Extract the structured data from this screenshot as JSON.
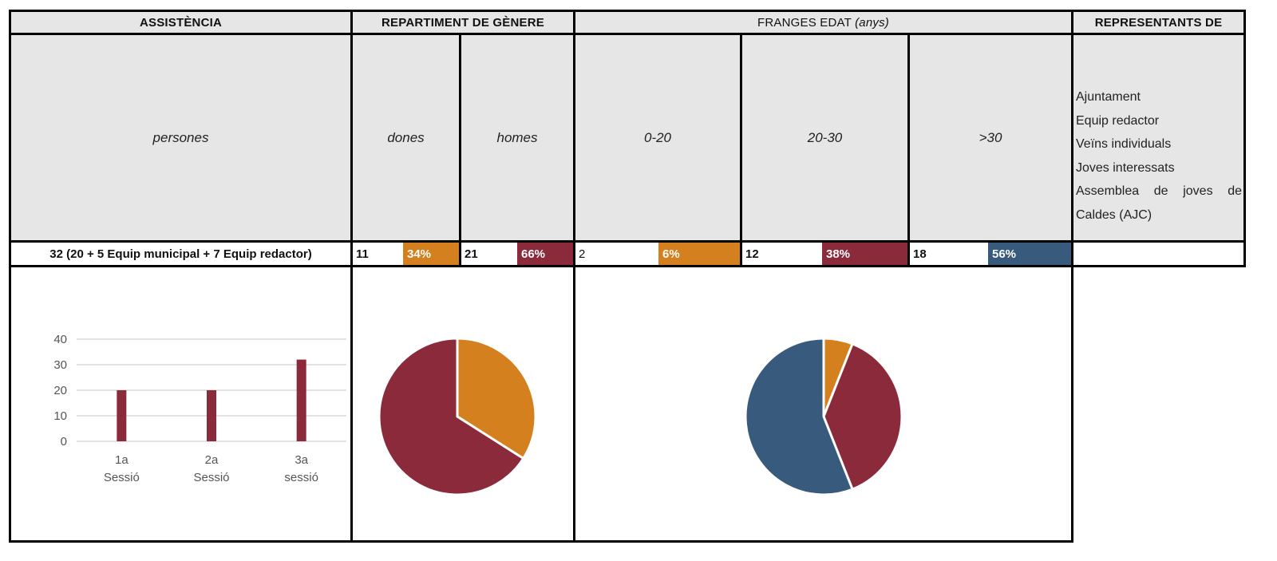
{
  "headers": {
    "assistencia": "ASSISTÈNCIA",
    "genere": "REPARTIMENT DE GÈNERE",
    "edat_main": "FRANGES EDAT ",
    "edat_unit": "(anys)",
    "representants": "REPRESENTANTS DE"
  },
  "subheaders": {
    "persones": "persones",
    "dones": "dones",
    "homes": "homes",
    "age_0_20": "0-20",
    "age_20_30": "20-30",
    "age_30_plus": ">30"
  },
  "representants_list": [
    "Ajuntament",
    "Equip redactor",
    "Veïns individuals",
    "Joves interessats",
    "Assemblea de joves de Caldes (AJC)"
  ],
  "values": {
    "total": "32 (20 + 5 Equip municipal + 7 Equip redactor)",
    "dones_n": "11",
    "dones_pct": "34%",
    "homes_n": "21",
    "homes_pct": "66%",
    "a1_n": "2",
    "a1_pct": "6%",
    "a2_n": "12",
    "a2_pct": "38%",
    "a3_n": "18",
    "a3_pct": "56%"
  },
  "colors": {
    "orange": "#d5801f",
    "crimson": "#8b2a3b",
    "blue": "#385a7d",
    "header_bg": "#e6e6e6"
  },
  "chart_data": [
    {
      "type": "bar",
      "categories": [
        "1a Sessió",
        "2a Sessió",
        "3a sessió"
      ],
      "category_lines": [
        [
          "1a",
          "Sessió"
        ],
        [
          "2a",
          "Sessió"
        ],
        [
          "3a",
          "sessió"
        ]
      ],
      "values": [
        20,
        20,
        32
      ],
      "ylim": [
        0,
        40
      ],
      "yticks": [
        0,
        10,
        20,
        30,
        40
      ],
      "grid": true,
      "color": "#8b2a3b"
    },
    {
      "type": "pie",
      "labels": [
        "dones",
        "homes"
      ],
      "values": [
        34,
        66
      ],
      "colors": [
        "#d5801f",
        "#8b2a3b"
      ]
    },
    {
      "type": "pie",
      "labels": [
        "0-20",
        "20-30",
        ">30"
      ],
      "values": [
        6,
        38,
        56
      ],
      "colors": [
        "#d5801f",
        "#8b2a3b",
        "#385a7d"
      ]
    }
  ]
}
